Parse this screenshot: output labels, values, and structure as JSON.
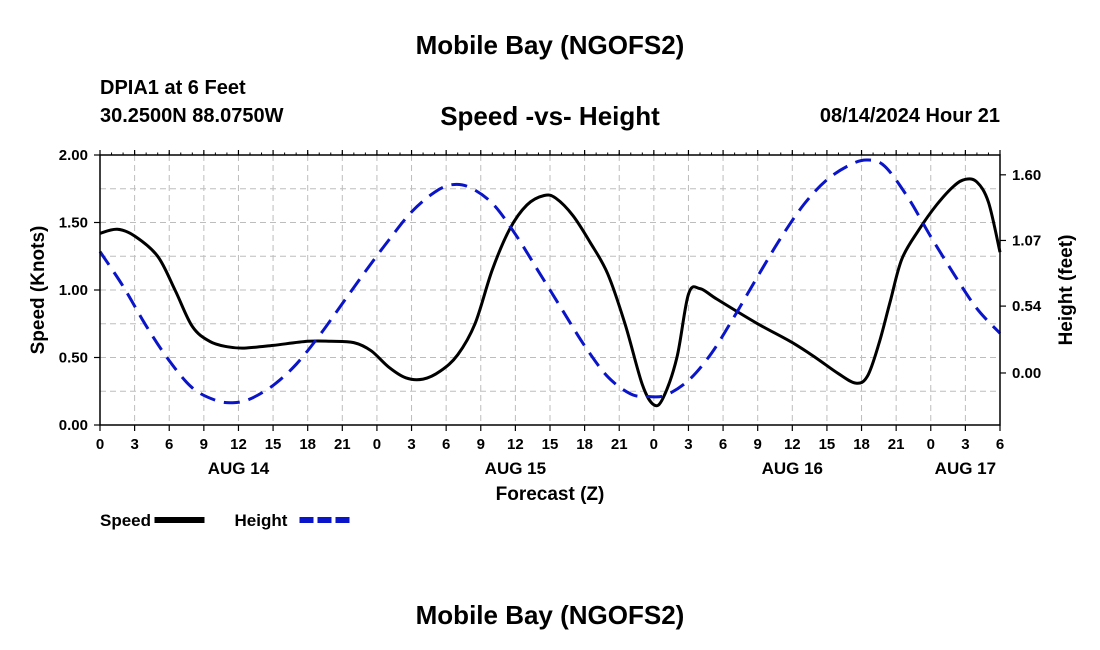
{
  "header": {
    "title": "Mobile Bay (NGOFS2)",
    "station": "DPIA1 at 6 Feet",
    "coords": "30.2500N  88.0750W",
    "subtitle": "Speed -vs- Height",
    "datetime": "08/14/2024 Hour 21"
  },
  "footer": {
    "title": "Mobile Bay (NGOFS2)"
  },
  "chart_data": {
    "type": "line",
    "xlabel": "Forecast (Z)",
    "ylabel": "Speed (Knots)",
    "y2label": "Height (feet)",
    "x_range_hours": [
      0,
      78
    ],
    "ylim": [
      0,
      2
    ],
    "y2lim": [
      -0.42,
      1.76
    ],
    "y_ticks": [
      {
        "value": 0,
        "label": "0.00"
      },
      {
        "value": 0.5,
        "label": "0.50"
      },
      {
        "value": 1.0,
        "label": "1.00"
      },
      {
        "value": 1.5,
        "label": "1.50"
      },
      {
        "value": 2.0,
        "label": "2.00"
      }
    ],
    "y2_ticks": [
      {
        "value": 0.0,
        "label": "0.00"
      },
      {
        "value": 0.54,
        "label": "0.54"
      },
      {
        "value": 1.07,
        "label": "1.07"
      },
      {
        "value": 1.6,
        "label": "1.60"
      }
    ],
    "x_ticks": [
      {
        "hour": 0,
        "label": "0"
      },
      {
        "hour": 3,
        "label": "3"
      },
      {
        "hour": 6,
        "label": "6"
      },
      {
        "hour": 9,
        "label": "9"
      },
      {
        "hour": 12,
        "label": "12"
      },
      {
        "hour": 15,
        "label": "15"
      },
      {
        "hour": 18,
        "label": "18"
      },
      {
        "hour": 21,
        "label": "21"
      },
      {
        "hour": 24,
        "label": "0"
      },
      {
        "hour": 27,
        "label": "3"
      },
      {
        "hour": 30,
        "label": "6"
      },
      {
        "hour": 33,
        "label": "9"
      },
      {
        "hour": 36,
        "label": "12"
      },
      {
        "hour": 39,
        "label": "15"
      },
      {
        "hour": 42,
        "label": "18"
      },
      {
        "hour": 45,
        "label": "21"
      },
      {
        "hour": 48,
        "label": "0"
      },
      {
        "hour": 51,
        "label": "3"
      },
      {
        "hour": 54,
        "label": "6"
      },
      {
        "hour": 57,
        "label": "9"
      },
      {
        "hour": 60,
        "label": "12"
      },
      {
        "hour": 63,
        "label": "15"
      },
      {
        "hour": 66,
        "label": "18"
      },
      {
        "hour": 69,
        "label": "21"
      },
      {
        "hour": 72,
        "label": "0"
      },
      {
        "hour": 75,
        "label": "3"
      },
      {
        "hour": 78,
        "label": "6"
      }
    ],
    "date_labels": [
      {
        "hour": 12,
        "label": "AUG 14"
      },
      {
        "hour": 36,
        "label": "AUG 15"
      },
      {
        "hour": 60,
        "label": "AUG 16"
      },
      {
        "hour": 75,
        "label": "AUG 17"
      }
    ],
    "series": [
      {
        "name": "Speed",
        "axis": "left",
        "color": "#000000",
        "dash": "solid",
        "points": [
          [
            0,
            1.42
          ],
          [
            1.5,
            1.45
          ],
          [
            3,
            1.4
          ],
          [
            5,
            1.25
          ],
          [
            6.5,
            1.0
          ],
          [
            8,
            0.73
          ],
          [
            9.5,
            0.62
          ],
          [
            11,
            0.58
          ],
          [
            12.5,
            0.57
          ],
          [
            15,
            0.59
          ],
          [
            18,
            0.62
          ],
          [
            20,
            0.62
          ],
          [
            22,
            0.61
          ],
          [
            23.5,
            0.55
          ],
          [
            25,
            0.43
          ],
          [
            26.5,
            0.35
          ],
          [
            28,
            0.34
          ],
          [
            29.5,
            0.4
          ],
          [
            31,
            0.52
          ],
          [
            32.5,
            0.75
          ],
          [
            34,
            1.15
          ],
          [
            35.5,
            1.45
          ],
          [
            37,
            1.63
          ],
          [
            38.5,
            1.7
          ],
          [
            39.5,
            1.68
          ],
          [
            41,
            1.55
          ],
          [
            42.5,
            1.35
          ],
          [
            44,
            1.12
          ],
          [
            45.5,
            0.75
          ],
          [
            47,
            0.3
          ],
          [
            48,
            0.15
          ],
          [
            48.8,
            0.2
          ],
          [
            50,
            0.5
          ],
          [
            51,
            0.97
          ],
          [
            52,
            1.01
          ],
          [
            53.5,
            0.93
          ],
          [
            57,
            0.75
          ],
          [
            60,
            0.61
          ],
          [
            62,
            0.5
          ],
          [
            64,
            0.38
          ],
          [
            65.5,
            0.31
          ],
          [
            66.5,
            0.36
          ],
          [
            67.5,
            0.6
          ],
          [
            68.5,
            0.92
          ],
          [
            69.5,
            1.23
          ],
          [
            71,
            1.45
          ],
          [
            72.5,
            1.63
          ],
          [
            74,
            1.77
          ],
          [
            75,
            1.82
          ],
          [
            76,
            1.8
          ],
          [
            77,
            1.65
          ],
          [
            78,
            1.28
          ]
        ]
      },
      {
        "name": "Height",
        "axis": "right",
        "color": "#0a14c8",
        "dash": "dashed",
        "points": [
          [
            0,
            0.98
          ],
          [
            2,
            0.7
          ],
          [
            4,
            0.38
          ],
          [
            6,
            0.1
          ],
          [
            8,
            -0.12
          ],
          [
            10,
            -0.22
          ],
          [
            11.5,
            -0.24
          ],
          [
            13,
            -0.21
          ],
          [
            15,
            -0.1
          ],
          [
            17,
            0.07
          ],
          [
            19,
            0.3
          ],
          [
            21,
            0.56
          ],
          [
            23,
            0.82
          ],
          [
            25,
            1.07
          ],
          [
            27,
            1.3
          ],
          [
            29,
            1.46
          ],
          [
            30.5,
            1.52
          ],
          [
            32,
            1.5
          ],
          [
            34,
            1.37
          ],
          [
            36,
            1.12
          ],
          [
            38,
            0.82
          ],
          [
            40,
            0.52
          ],
          [
            42,
            0.22
          ],
          [
            44,
            -0.03
          ],
          [
            46,
            -0.17
          ],
          [
            47.5,
            -0.19
          ],
          [
            49,
            -0.18
          ],
          [
            51,
            -0.06
          ],
          [
            53,
            0.16
          ],
          [
            55,
            0.46
          ],
          [
            57,
            0.78
          ],
          [
            59,
            1.09
          ],
          [
            61,
            1.36
          ],
          [
            63,
            1.56
          ],
          [
            65,
            1.68
          ],
          [
            66.5,
            1.72
          ],
          [
            68,
            1.67
          ],
          [
            70,
            1.42
          ],
          [
            72,
            1.1
          ],
          [
            74,
            0.8
          ],
          [
            76,
            0.52
          ],
          [
            78,
            0.32
          ]
        ]
      }
    ],
    "legend": [
      {
        "label": "Speed",
        "color": "#000000",
        "dash": "solid"
      },
      {
        "label": "Height",
        "color": "#0a14c8",
        "dash": "dashed"
      }
    ],
    "grid": true
  }
}
